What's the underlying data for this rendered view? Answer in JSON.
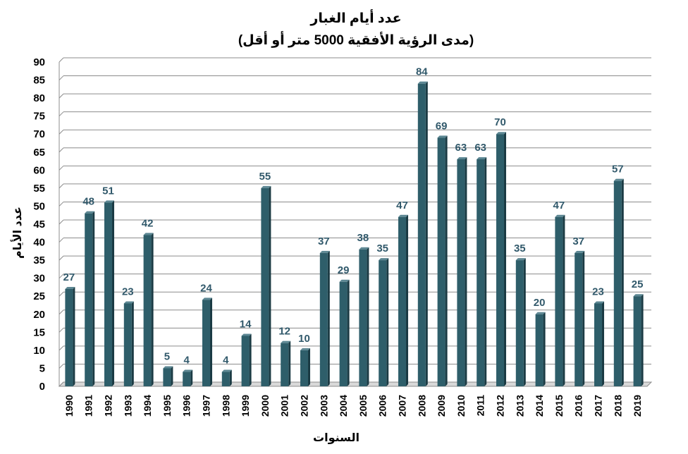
{
  "chart_data": {
    "type": "bar",
    "title": "عدد أيام الغبار",
    "subtitle": "(مدى الرؤية الأفقية 5000 متر أو أقل)",
    "xlabel": "السنوات",
    "ylabel": "عدد الأيام",
    "categories": [
      "1990",
      "1991",
      "1992",
      "1993",
      "1994",
      "1995",
      "1996",
      "1997",
      "1998",
      "1999",
      "2000",
      "2001",
      "2002",
      "2003",
      "2004",
      "2005",
      "2006",
      "2007",
      "2008",
      "2009",
      "2010",
      "2011",
      "2012",
      "2013",
      "2014",
      "2015",
      "2016",
      "2017",
      "2018",
      "2019"
    ],
    "values": [
      27,
      48,
      51,
      23,
      42,
      5,
      4,
      24,
      4,
      14,
      55,
      12,
      10,
      37,
      29,
      38,
      35,
      47,
      84,
      69,
      63,
      63,
      70,
      35,
      20,
      47,
      37,
      23,
      57,
      25
    ],
    "ylim": [
      0,
      90
    ],
    "yticks": [
      0,
      5,
      10,
      15,
      20,
      25,
      30,
      35,
      40,
      45,
      50,
      55,
      60,
      65,
      70,
      75,
      80,
      85,
      90
    ],
    "grid": true,
    "legend": "none",
    "bar_color": "#2e5e6a",
    "bar_side_color": "#1b3b44",
    "bar_top_color": "#5c8793",
    "label_color": "#31596b"
  }
}
